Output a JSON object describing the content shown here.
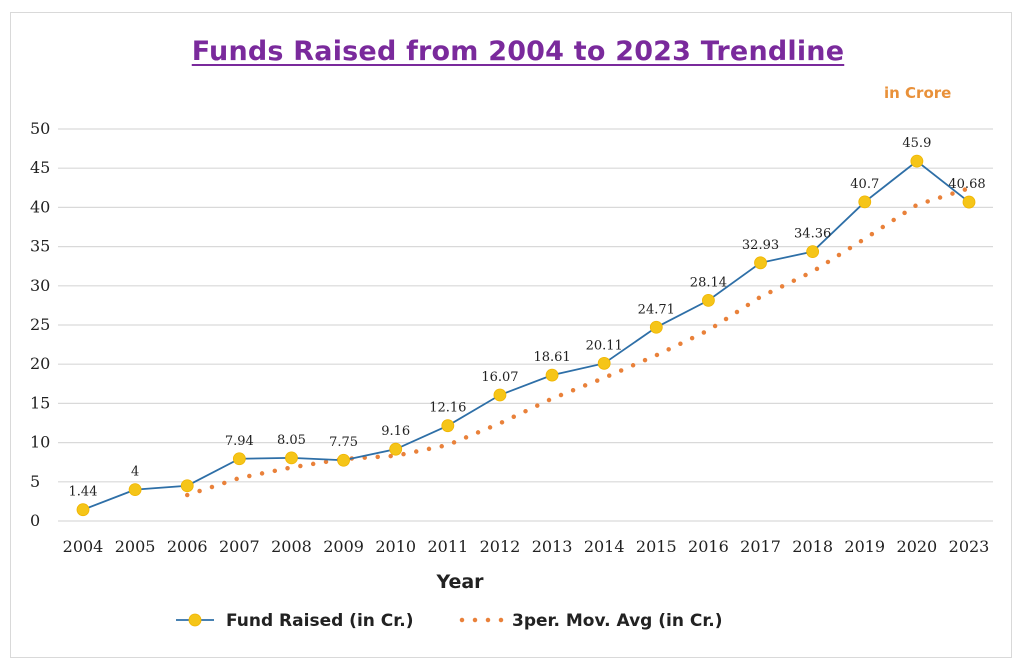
{
  "chart_data": {
    "type": "line",
    "title": "Funds Raised from 2004 to 2023 Trendline",
    "unit_note": "in Crore",
    "xlabel": "Year",
    "ylabel": "",
    "categories": [
      "2004",
      "2005",
      "2006",
      "2007",
      "2008",
      "2009",
      "2010",
      "2011",
      "2012",
      "2013",
      "2014",
      "2015",
      "2016",
      "2017",
      "2018",
      "2019",
      "2020",
      "2023"
    ],
    "ylim": [
      0,
      50
    ],
    "yticks": [
      0,
      5,
      10,
      15,
      20,
      25,
      30,
      35,
      40,
      45,
      50
    ],
    "grid": true,
    "legend_position": "bottom",
    "series": [
      {
        "name": "Fund Raised (in Cr.)",
        "values": [
          1.44,
          4,
          4.5,
          7.94,
          8.05,
          7.75,
          9.16,
          12.16,
          16.07,
          18.61,
          20.11,
          24.71,
          28.14,
          32.93,
          34.36,
          40.7,
          45.9,
          40.68
        ],
        "labels": [
          "1.44",
          "4",
          "",
          "7.94",
          "8.05",
          "7.75",
          "9.16",
          "12.16",
          "16.07",
          "18.61",
          "20.11",
          "24.71",
          "28.14",
          "32.93",
          "34.36",
          "40.7",
          "45.9",
          "40.68"
        ],
        "line_color": "#2e6fa7",
        "marker_color": "#f5c518"
      },
      {
        "name": "3per. Mov. Avg (in Cr.)",
        "values": [
          null,
          null,
          3.31,
          5.48,
          6.83,
          7.91,
          8.32,
          9.69,
          12.46,
          15.61,
          18.26,
          21.14,
          24.32,
          28.59,
          31.81,
          36.0,
          40.32,
          42.43
        ],
        "color": "#e9813a"
      }
    ]
  }
}
